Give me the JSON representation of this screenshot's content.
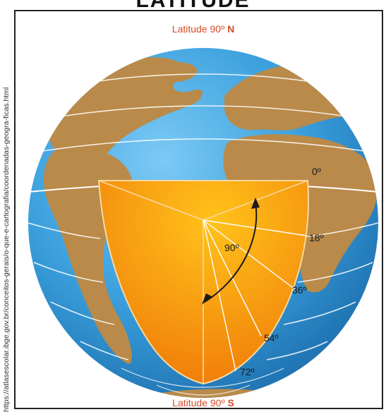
{
  "title": "LATITUDE",
  "source_url": "https://atlasescolar.ibge.gov.br/conceitos-gerais/o-que-e-cartografia/coordenadas-geogra-ficas.html",
  "labels": {
    "north_prefix": "Latitude 90º ",
    "north_letter": "N",
    "south_prefix": "Latitude 90º ",
    "south_letter": "S",
    "angle": "90º",
    "lat_0": "0º",
    "lat_18": "18º",
    "lat_36": "36º",
    "lat_54": "54º",
    "lat_72": "72º"
  },
  "colors": {
    "ocean": "#3a9fdc",
    "land": "#b98a4a",
    "wedge": "#f49a12",
    "label_red": "#d44a2a",
    "label_dark": "#1b1b1b"
  }
}
